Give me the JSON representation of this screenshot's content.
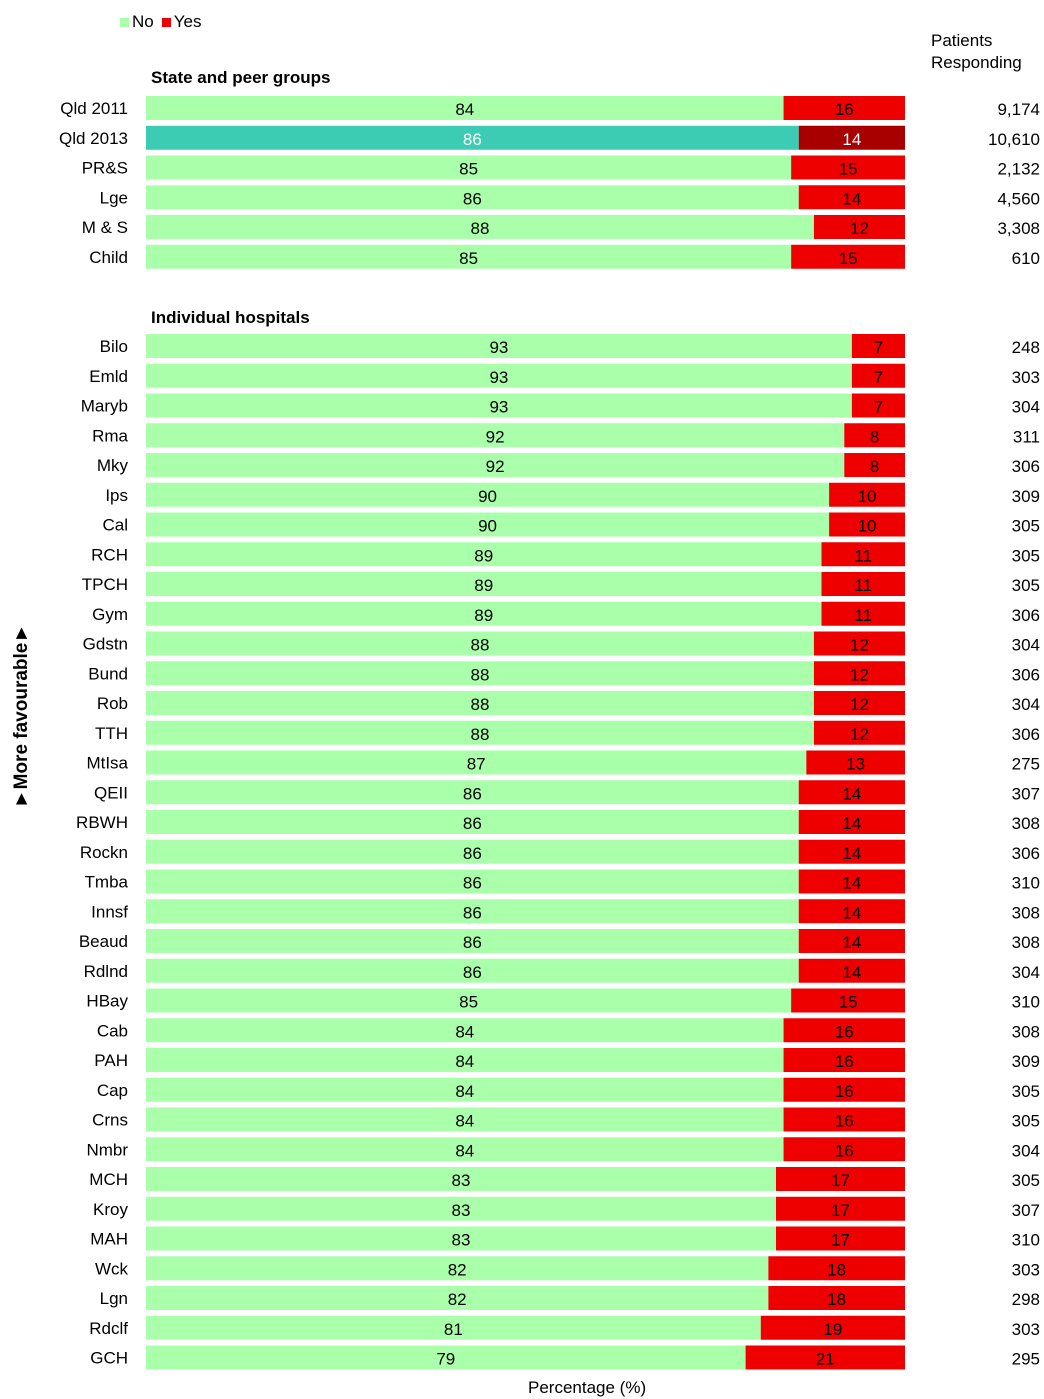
{
  "legend": [
    {
      "name": "No",
      "color": "#aaffaa"
    },
    {
      "name": "Yes",
      "color": "#ee0000"
    }
  ],
  "responding_header": [
    "Patients",
    "Responding"
  ],
  "side_label": "►More favourable►",
  "chart_data": {
    "type": "bar",
    "orientation": "horizontal",
    "stacked": "percent",
    "xlabel": "Percentage (%)",
    "xlim": [
      0,
      100
    ],
    "series_names": [
      "No",
      "Yes"
    ],
    "colors": {
      "No": "#aaffaa",
      "Yes": "#ee0000",
      "No_highlight": "#3cccb4",
      "Yes_highlight": "#a80000"
    },
    "groups": [
      {
        "title": "State and peer groups",
        "rows": [
          {
            "label": "Qld 2011",
            "no": 84,
            "yes": 16,
            "n": "9,174"
          },
          {
            "label": "Qld 2013",
            "no": 86,
            "yes": 14,
            "n": "10,610",
            "highlight": true
          },
          {
            "label": "PR&S",
            "no": 85,
            "yes": 15,
            "n": "2,132"
          },
          {
            "label": "Lge",
            "no": 86,
            "yes": 14,
            "n": "4,560"
          },
          {
            "label": "M & S",
            "no": 88,
            "yes": 12,
            "n": "3,308"
          },
          {
            "label": "Child",
            "no": 85,
            "yes": 15,
            "n": "610"
          }
        ]
      },
      {
        "title": "Individual hospitals",
        "rows": [
          {
            "label": "Bilo",
            "no": 93,
            "yes": 7,
            "n": "248"
          },
          {
            "label": "Emld",
            "no": 93,
            "yes": 7,
            "n": "303"
          },
          {
            "label": "Maryb",
            "no": 93,
            "yes": 7,
            "n": "304"
          },
          {
            "label": "Rma",
            "no": 92,
            "yes": 8,
            "n": "311"
          },
          {
            "label": "Mky",
            "no": 92,
            "yes": 8,
            "n": "306"
          },
          {
            "label": "Ips",
            "no": 90,
            "yes": 10,
            "n": "309"
          },
          {
            "label": "Cal",
            "no": 90,
            "yes": 10,
            "n": "305"
          },
          {
            "label": "RCH",
            "no": 89,
            "yes": 11,
            "n": "305"
          },
          {
            "label": "TPCH",
            "no": 89,
            "yes": 11,
            "n": "305"
          },
          {
            "label": "Gym",
            "no": 89,
            "yes": 11,
            "n": "306"
          },
          {
            "label": "Gdstn",
            "no": 88,
            "yes": 12,
            "n": "304"
          },
          {
            "label": "Bund",
            "no": 88,
            "yes": 12,
            "n": "306"
          },
          {
            "label": "Rob",
            "no": 88,
            "yes": 12,
            "n": "304"
          },
          {
            "label": "TTH",
            "no": 88,
            "yes": 12,
            "n": "306"
          },
          {
            "label": "MtIsa",
            "no": 87,
            "yes": 13,
            "n": "275"
          },
          {
            "label": "QEII",
            "no": 86,
            "yes": 14,
            "n": "307"
          },
          {
            "label": "RBWH",
            "no": 86,
            "yes": 14,
            "n": "308"
          },
          {
            "label": "Rockn",
            "no": 86,
            "yes": 14,
            "n": "306"
          },
          {
            "label": "Tmba",
            "no": 86,
            "yes": 14,
            "n": "310"
          },
          {
            "label": "Innsf",
            "no": 86,
            "yes": 14,
            "n": "308"
          },
          {
            "label": "Beaud",
            "no": 86,
            "yes": 14,
            "n": "308"
          },
          {
            "label": "Rdlnd",
            "no": 86,
            "yes": 14,
            "n": "304"
          },
          {
            "label": "HBay",
            "no": 85,
            "yes": 15,
            "n": "310"
          },
          {
            "label": "Cab",
            "no": 84,
            "yes": 16,
            "n": "308"
          },
          {
            "label": "PAH",
            "no": 84,
            "yes": 16,
            "n": "309"
          },
          {
            "label": "Cap",
            "no": 84,
            "yes": 16,
            "n": "305"
          },
          {
            "label": "Crns",
            "no": 84,
            "yes": 16,
            "n": "305"
          },
          {
            "label": "Nmbr",
            "no": 84,
            "yes": 16,
            "n": "304"
          },
          {
            "label": "MCH",
            "no": 83,
            "yes": 17,
            "n": "305"
          },
          {
            "label": "Kroy",
            "no": 83,
            "yes": 17,
            "n": "307"
          },
          {
            "label": "MAH",
            "no": 83,
            "yes": 17,
            "n": "310"
          },
          {
            "label": "Wck",
            "no": 82,
            "yes": 18,
            "n": "303"
          },
          {
            "label": "Lgn",
            "no": 82,
            "yes": 18,
            "n": "298"
          },
          {
            "label": "Rdclf",
            "no": 81,
            "yes": 19,
            "n": "303"
          },
          {
            "label": "GCH",
            "no": 79,
            "yes": 21,
            "n": "295"
          }
        ]
      }
    ]
  }
}
